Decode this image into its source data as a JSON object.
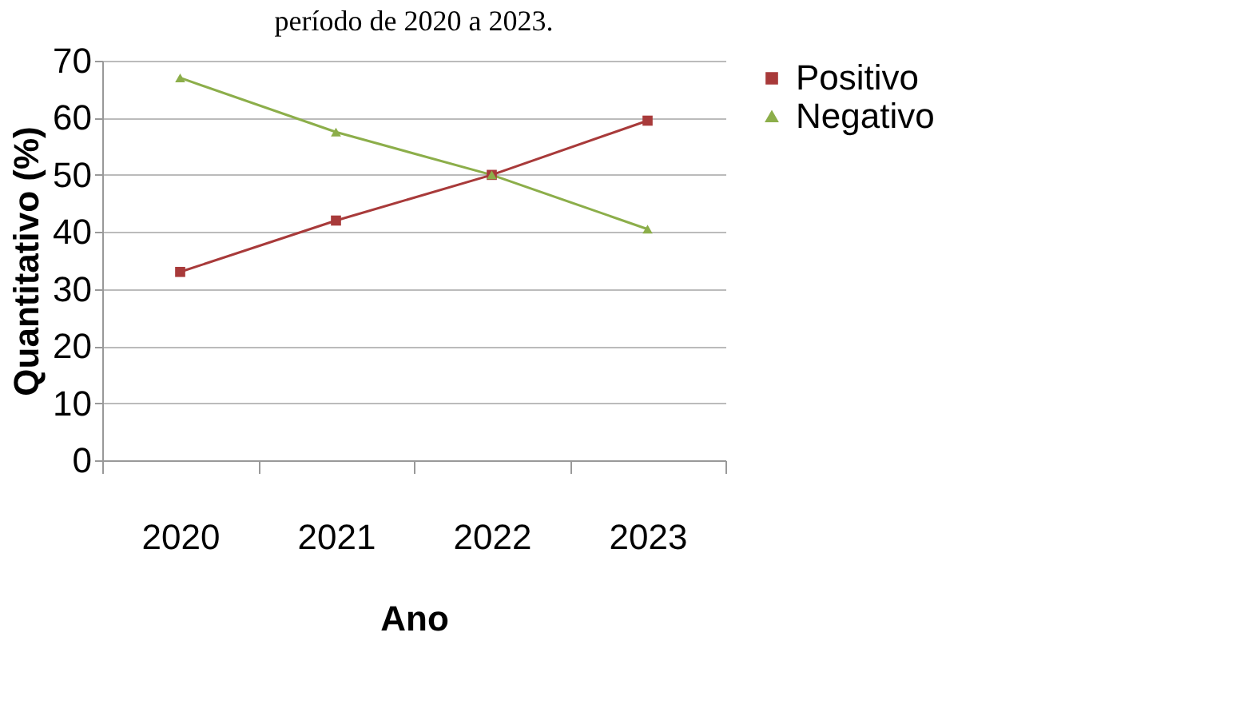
{
  "chart_data": {
    "type": "line",
    "title": "período de 2020 a 2023.",
    "xlabel": "Ano",
    "ylabel": "Quantitativo (%)",
    "categories": [
      "2020",
      "2021",
      "2022",
      "2023"
    ],
    "series": [
      {
        "name": "Positivo",
        "color": "#a83a3a",
        "marker": "square",
        "values": [
          33,
          42,
          50,
          59.5
        ]
      },
      {
        "name": "Negativo",
        "color": "#8cae4a",
        "marker": "triangle",
        "values": [
          67,
          57.5,
          50,
          40.5
        ]
      }
    ],
    "ylim": [
      0,
      70
    ],
    "yticks": [
      0,
      10,
      20,
      30,
      40,
      50,
      60,
      70
    ],
    "grid": "y",
    "legend": "right"
  }
}
